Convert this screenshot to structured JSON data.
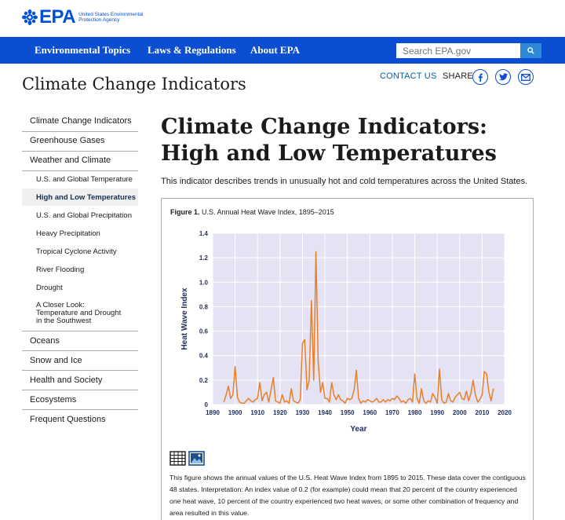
{
  "header": {
    "logo_word": "EPA",
    "logo_sub": "United States Environmental Protection Agency"
  },
  "nav": {
    "items": [
      "Environmental Topics",
      "Laws & Regulations",
      "About EPA"
    ],
    "search_placeholder": "Search EPA.gov",
    "search_icon": "search-icon"
  },
  "site": {
    "title": "Climate Change Indicators",
    "contact": "CONTACT US",
    "share": "SHARE",
    "share_icons": [
      "facebook-icon",
      "twitter-icon",
      "email-icon"
    ]
  },
  "sidebar": {
    "items": [
      {
        "label": "Climate Change Indicators",
        "level": 1
      },
      {
        "label": "Greenhouse Gases",
        "level": 1
      },
      {
        "label": "Weather and Climate",
        "level": 1
      },
      {
        "label": "U.S. and Global Temperature",
        "level": 2
      },
      {
        "label": "High and Low Temperatures",
        "level": 2,
        "active": true
      },
      {
        "label": "U.S. and Global Precipitation",
        "level": 2
      },
      {
        "label": "Heavy Precipitation",
        "level": 2
      },
      {
        "label": "Tropical Cyclone Activity",
        "level": 2
      },
      {
        "label": "River Flooding",
        "level": 2
      },
      {
        "label": "Drought",
        "level": 2
      },
      {
        "label": "A Closer Look: Temperature and Drought in the Southwest",
        "level": 2
      },
      {
        "label": "Oceans",
        "level": 1
      },
      {
        "label": "Snow and Ice",
        "level": 1
      },
      {
        "label": "Health and Society",
        "level": 1
      },
      {
        "label": "Ecosystems",
        "level": 1
      },
      {
        "label": "Frequent Questions",
        "level": 1
      }
    ]
  },
  "main": {
    "title": "Climate Change Indicators: High and Low Temperatures",
    "description": "This indicator describes trends in unusually hot and cold temperatures across the United States.",
    "figure_label": "Figure 1.",
    "figure_caption": " U.S. Annual Heat Wave Index, 1895–2015",
    "figure_icons": [
      "table-icon",
      "image-icon"
    ],
    "figure_text": "This figure shows the annual values of the U.S. Heat Wave Index from 1895 to 2015. These data cover the contiguous 48 states. Interpretation: An index value of 0.2 (for example) could mean that 20 percent of the country experienced one heat wave, 10 percent of the country experienced two heat waves, or some other combination of frequency and area resulted in this value."
  },
  "colors": {
    "nav_bg": "#0b4ed2",
    "brand_blue": "#0050d8",
    "plot_bg": "#e4e2f3",
    "grid": "#ffffff",
    "line": "#e8802a",
    "axis_label": "#1f2d5c"
  },
  "chart_data": {
    "type": "line",
    "title": "",
    "xlabel": "Year",
    "ylabel": "Heat Wave Index",
    "xlim": [
      1890,
      2020
    ],
    "ylim": [
      0,
      1.4
    ],
    "xticks": [
      1890,
      1900,
      1910,
      1920,
      1930,
      1940,
      1950,
      1960,
      1970,
      1980,
      1990,
      2000,
      2010,
      2020
    ],
    "yticks": [
      0,
      0.2,
      0.4,
      0.6,
      0.8,
      1.0,
      1.2,
      1.4
    ],
    "ytick_labels": [
      "0",
      "0.2",
      "0.4",
      "0.6",
      "0.8",
      "1.0",
      "1.2",
      "1.4"
    ],
    "grid": true,
    "series": [
      {
        "x": [
          1895,
          1896,
          1897,
          1898,
          1899,
          1900,
          1901,
          1902,
          1903,
          1904,
          1905,
          1906,
          1907,
          1908,
          1909,
          1910,
          1911,
          1912,
          1913,
          1914,
          1915,
          1916,
          1917,
          1918,
          1919,
          1920,
          1921,
          1922,
          1923,
          1924,
          1925,
          1926,
          1927,
          1928,
          1929,
          1930,
          1931,
          1932,
          1933,
          1934,
          1935,
          1936,
          1937,
          1938,
          1939,
          1940,
          1941,
          1942,
          1943,
          1944,
          1945,
          1946,
          1947,
          1948,
          1949,
          1950,
          1951,
          1952,
          1953,
          1954,
          1955,
          1956,
          1957,
          1958,
          1959,
          1960,
          1961,
          1962,
          1963,
          1964,
          1965,
          1966,
          1967,
          1968,
          1969,
          1970,
          1971,
          1972,
          1973,
          1974,
          1975,
          1976,
          1977,
          1978,
          1979,
          1980,
          1981,
          1982,
          1983,
          1984,
          1985,
          1986,
          1987,
          1988,
          1989,
          1990,
          1991,
          1992,
          1993,
          1994,
          1995,
          1996,
          1997,
          1998,
          1999,
          2000,
          2001,
          2002,
          2003,
          2004,
          2005,
          2006,
          2007,
          2008,
          2009,
          2010,
          2011,
          2012,
          2013,
          2014,
          2015
        ],
        "values": [
          0.02,
          0.08,
          0.15,
          0.05,
          0.08,
          0.31,
          0.06,
          0.02,
          0.01,
          0.01,
          0.03,
          0.05,
          0.03,
          0.02,
          0.04,
          0.05,
          0.18,
          0.03,
          0.08,
          0.1,
          0.02,
          0.12,
          0.22,
          0.03,
          0.02,
          0.01,
          0.08,
          0.02,
          0.03,
          0.01,
          0.13,
          0.03,
          0.02,
          0.01,
          0.04,
          0.5,
          0.53,
          0.12,
          0.2,
          0.85,
          0.2,
          1.25,
          0.35,
          0.1,
          0.18,
          0.05,
          0.05,
          0.02,
          0.18,
          0.08,
          0.04,
          0.08,
          0.04,
          0.03,
          0.01,
          0.05,
          0.04,
          0.05,
          0.12,
          0.28,
          0.05,
          0.01,
          0.03,
          0.02,
          0.04,
          0.03,
          0.02,
          0.03,
          0.05,
          0.02,
          0.02,
          0.04,
          0.02,
          0.04,
          0.03,
          0.05,
          0.04,
          0.07,
          0.05,
          0.02,
          0.03,
          0.01,
          0.04,
          0.05,
          0.02,
          0.25,
          0.05,
          0.01,
          0.13,
          0.03,
          0.01,
          0.03,
          0.02,
          0.09,
          0.06,
          0.01,
          0.29,
          0.04,
          0.01,
          0.02,
          0.09,
          0.03,
          0.02,
          0.06,
          0.08,
          0.1,
          0.05,
          0.04,
          0.11,
          0.03,
          0.09,
          0.2,
          0.08,
          0.02,
          0.04,
          0.08,
          0.27,
          0.25,
          0.1,
          0.03,
          0.13
        ]
      }
    ]
  }
}
